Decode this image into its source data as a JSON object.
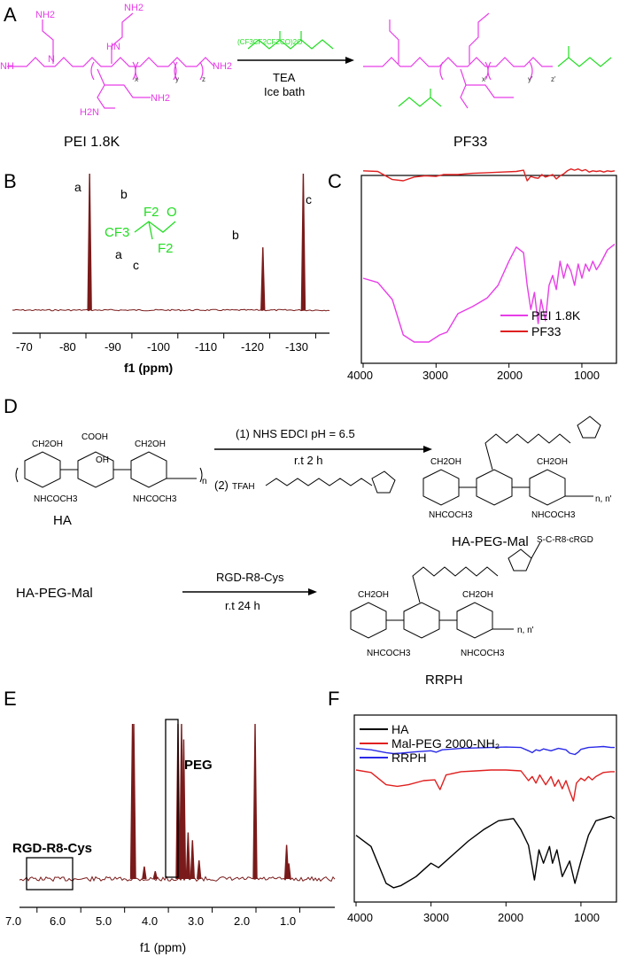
{
  "panels": {
    "A": {
      "label": "A",
      "reactant_label": "PEI  1.8K",
      "product_label": "PF33",
      "reagent_above": "(CF3CF2CF2CO)2O",
      "reagent_below_1": "TEA",
      "reagent_below_2": "Ice bath",
      "subscripts": [
        "x",
        "y",
        "z",
        "x'",
        "y'",
        "z'"
      ],
      "colors": {
        "pei": "#e83ee8",
        "fluoro": "#22dd22"
      }
    },
    "B": {
      "label": "B",
      "peak_labels": [
        "a",
        "b",
        "c"
      ],
      "struct_labels": [
        "b",
        "F2",
        "O",
        "CF3",
        "F2",
        "a",
        "c"
      ],
      "xlabel": "f1 (ppm)",
      "xticks": [
        "-70",
        "-80",
        "-90",
        "-100",
        "-110",
        "-120",
        "-130"
      ],
      "color": "#7a1a1a"
    },
    "C": {
      "label": "C",
      "xticks": [
        "4000",
        "3000",
        "2000",
        "1000"
      ],
      "legend": [
        {
          "name": "PEI 1.8K",
          "color": "#e83ee8"
        },
        {
          "name": "PF33",
          "color": "#e02020"
        }
      ]
    },
    "D": {
      "label": "D",
      "ha_label": "HA",
      "hapegmal_label": "HA-PEG-Mal",
      "rrph_label": "RRPH",
      "reactant2_label": "HA-PEG-Mal",
      "step1": "(1) NHS EDCI pH = 6.5",
      "step1_cond": "r.t 2 h",
      "step2": "(2)",
      "step2_reagent": "TFAH",
      "reagent2": "RGD-R8-Cys",
      "reagent2_cond": "r.t 24 h",
      "peptide_tag": "S-C-R8-cRGD",
      "ring_groups": [
        "CH2OH",
        "COOH",
        "CH2OH",
        "OH",
        "NHCOCH3",
        "NHCOCH3",
        "NHCOCH3",
        "n",
        "n, n'"
      ]
    },
    "E": {
      "label": "E",
      "annotations": [
        "PEG",
        "RGD-R8-Cys"
      ],
      "xlabel": "f1 (ppm)",
      "xticks": [
        "7.0",
        "6.0",
        "5.0",
        "4.0",
        "3.0",
        "2.0",
        "1.0"
      ],
      "color": "#7a1a1a"
    },
    "F": {
      "label": "F",
      "xticks": [
        "4000",
        "3000",
        "2000",
        "1000"
      ],
      "legend": [
        {
          "name": "HA",
          "color": "#000000"
        },
        {
          "name": "Mal-PEG 2000-NH₂",
          "color": "#e02020"
        },
        {
          "name": "RRPH",
          "color": "#2a2ae8"
        }
      ]
    }
  },
  "chart_data": [
    {
      "panel": "B",
      "type": "line",
      "xlabel": "f1 (ppm)",
      "xlim": [
        -64,
        -133
      ],
      "xticks": [
        -70,
        -80,
        -90,
        -100,
        -110,
        -120,
        -130
      ],
      "peaks": [
        {
          "label": "a",
          "x": -80.8,
          "height": 1.0
        },
        {
          "label": "b",
          "x": -118.5,
          "height": 0.46
        },
        {
          "label": "c",
          "x": -127.3,
          "height": 1.0
        }
      ]
    },
    {
      "panel": "C",
      "type": "line",
      "xlim": [
        4000,
        550
      ],
      "xticks": [
        4000,
        3000,
        2000,
        1000
      ],
      "series": [
        {
          "name": "PEI 1.8K",
          "x": [
            4000,
            3800,
            3600,
            3450,
            3300,
            3100,
            2950,
            2850,
            2700,
            2500,
            2300,
            2150,
            2000,
            1900,
            1800,
            1750,
            1700,
            1650,
            1600,
            1560,
            1500,
            1450,
            1400,
            1350,
            1300,
            1250,
            1200,
            1150,
            1100,
            1050,
            1000,
            950,
            900,
            850,
            800,
            750,
            700,
            650,
            600,
            550
          ],
          "y": [
            0.6,
            0.57,
            0.45,
            0.2,
            0.15,
            0.15,
            0.2,
            0.22,
            0.35,
            0.4,
            0.46,
            0.55,
            0.72,
            0.82,
            0.78,
            0.55,
            0.38,
            0.5,
            0.28,
            0.45,
            0.3,
            0.55,
            0.62,
            0.52,
            0.72,
            0.6,
            0.7,
            0.65,
            0.55,
            0.7,
            0.6,
            0.7,
            0.65,
            0.72,
            0.66,
            0.7,
            0.75,
            0.8,
            0.82,
            0.84
          ]
        },
        {
          "name": "PF33",
          "x": [
            4000,
            3800,
            3600,
            3450,
            3300,
            3150,
            3000,
            2900,
            2700,
            2500,
            2300,
            2100,
            1900,
            1800,
            1750,
            1700,
            1650,
            1600,
            1550,
            1500,
            1400,
            1350,
            1300,
            1250,
            1200,
            1150,
            1100,
            1050,
            1000,
            950,
            900,
            850,
            800,
            750,
            700,
            650,
            600,
            550
          ],
          "y": [
            0.96,
            0.95,
            0.82,
            0.8,
            0.86,
            0.88,
            0.87,
            0.9,
            0.9,
            0.92,
            0.93,
            0.94,
            0.95,
            0.97,
            0.8,
            0.87,
            0.85,
            0.84,
            0.9,
            0.86,
            0.9,
            0.83,
            0.88,
            0.91,
            0.96,
            0.99,
            0.97,
            0.99,
            0.96,
            0.98,
            0.94,
            0.96,
            0.95,
            0.96,
            0.94,
            0.96,
            0.95,
            0.96
          ]
        }
      ],
      "legend_position": "bottom-right"
    },
    {
      "panel": "E",
      "type": "line",
      "xlabel": "f1 (ppm)",
      "xlim": [
        7.4,
        0.2
      ],
      "xticks": [
        7.0,
        6.0,
        5.0,
        4.0,
        3.0,
        2.0,
        1.0
      ],
      "peaks": [
        {
          "x": 4.82,
          "height": 1.0
        },
        {
          "x": 4.79,
          "height": 1.0
        },
        {
          "x": 4.55,
          "height": 0.08
        },
        {
          "x": 4.3,
          "height": 0.05
        },
        {
          "x": 3.78,
          "height": 1.0
        },
        {
          "x": 3.7,
          "height": 1.0
        },
        {
          "x": 3.65,
          "height": 0.9
        },
        {
          "x": 3.55,
          "height": 0.3
        },
        {
          "x": 3.45,
          "height": 0.25
        },
        {
          "x": 3.3,
          "height": 0.12
        },
        {
          "x": 2.02,
          "height": 1.0
        },
        {
          "x": 1.3,
          "height": 0.22
        },
        {
          "x": 1.25,
          "height": 0.1
        }
      ],
      "regions": [
        {
          "label": "PEG",
          "x_range": [
            3.62,
            3.8
          ]
        },
        {
          "label": "RGD-R8-Cys",
          "x_range": [
            5.8,
            6.75
          ]
        }
      ]
    },
    {
      "panel": "F",
      "type": "line",
      "xlim": [
        4000,
        550
      ],
      "xticks": [
        4000,
        3000,
        2000,
        1000
      ],
      "series": [
        {
          "name": "HA",
          "x": [
            4000,
            3800,
            3600,
            3500,
            3400,
            3200,
            3000,
            2900,
            2700,
            2500,
            2300,
            2100,
            1900,
            1800,
            1700,
            1620,
            1560,
            1500,
            1420,
            1380,
            1320,
            1250,
            1150,
            1080,
            1040,
            1000,
            900,
            800,
            700,
            600,
            550
          ],
          "y": [
            0.55,
            0.45,
            0.12,
            0.08,
            0.1,
            0.18,
            0.3,
            0.26,
            0.38,
            0.5,
            0.6,
            0.68,
            0.7,
            0.6,
            0.46,
            0.15,
            0.42,
            0.3,
            0.45,
            0.3,
            0.42,
            0.18,
            0.32,
            0.12,
            0.22,
            0.32,
            0.55,
            0.68,
            0.7,
            0.72,
            0.7
          ]
        },
        {
          "name": "Mal-PEG 2000-NH₂",
          "x": [
            4000,
            3800,
            3600,
            3450,
            3300,
            3100,
            2950,
            2880,
            2800,
            2600,
            2400,
            2200,
            2000,
            1800,
            1700,
            1650,
            1600,
            1550,
            1470,
            1400,
            1350,
            1300,
            1250,
            1200,
            1150,
            1100,
            1060,
            1000,
            950,
            900,
            850,
            800,
            700,
            600,
            550
          ],
          "y": [
            0.88,
            0.85,
            0.7,
            0.68,
            0.7,
            0.75,
            0.76,
            0.64,
            0.82,
            0.86,
            0.87,
            0.88,
            0.88,
            0.87,
            0.75,
            0.8,
            0.72,
            0.82,
            0.7,
            0.8,
            0.68,
            0.76,
            0.65,
            0.75,
            0.62,
            0.5,
            0.72,
            0.78,
            0.75,
            0.8,
            0.76,
            0.8,
            0.85,
            0.86,
            0.86
          ]
        },
        {
          "name": "RRPH",
          "x": [
            4000,
            3800,
            3600,
            3500,
            3400,
            3200,
            3000,
            2930,
            2850,
            2600,
            2400,
            2200,
            2000,
            1800,
            1700,
            1650,
            1600,
            1550,
            1500,
            1400,
            1300,
            1200,
            1150,
            1080,
            1030,
            1000,
            900,
            800,
            700,
            600,
            550
          ],
          "y": [
            0.95,
            0.92,
            0.86,
            0.84,
            0.85,
            0.88,
            0.9,
            0.87,
            0.92,
            0.95,
            0.96,
            0.97,
            0.98,
            0.97,
            0.9,
            0.86,
            0.92,
            0.9,
            0.94,
            0.9,
            0.95,
            0.92,
            0.85,
            0.82,
            0.88,
            0.93,
            0.97,
            0.98,
            0.99,
            0.97,
            0.97
          ]
        }
      ],
      "legend_position": "top-left"
    }
  ]
}
